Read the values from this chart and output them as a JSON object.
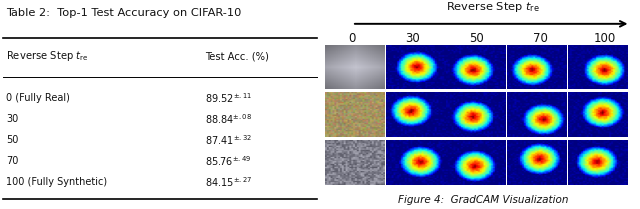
{
  "title": "Table 2:  Top-1 Test Accuracy on CIFAR-10",
  "col_headers": [
    "Reverse Step $t_{\\rm re}$",
    "Test Acc. (%)"
  ],
  "rows": [
    [
      "0 (Fully Real)",
      "89.52$^{\\pm .11}$"
    ],
    [
      "30",
      "88.84$^{\\pm .08}$"
    ],
    [
      "50",
      "87.41$^{\\pm .32}$"
    ],
    [
      "70",
      "85.76$^{\\pm .49}$"
    ],
    [
      "100 (Fully Synthetic)",
      "84.15$^{\\pm .27}$"
    ]
  ],
  "right_title": "Reverse Step $t_{\\rm re}$",
  "right_col_labels": [
    "0",
    "30",
    "50",
    "70",
    "100"
  ],
  "right_caption": "Figure 4:  GradCAM Visualization"
}
